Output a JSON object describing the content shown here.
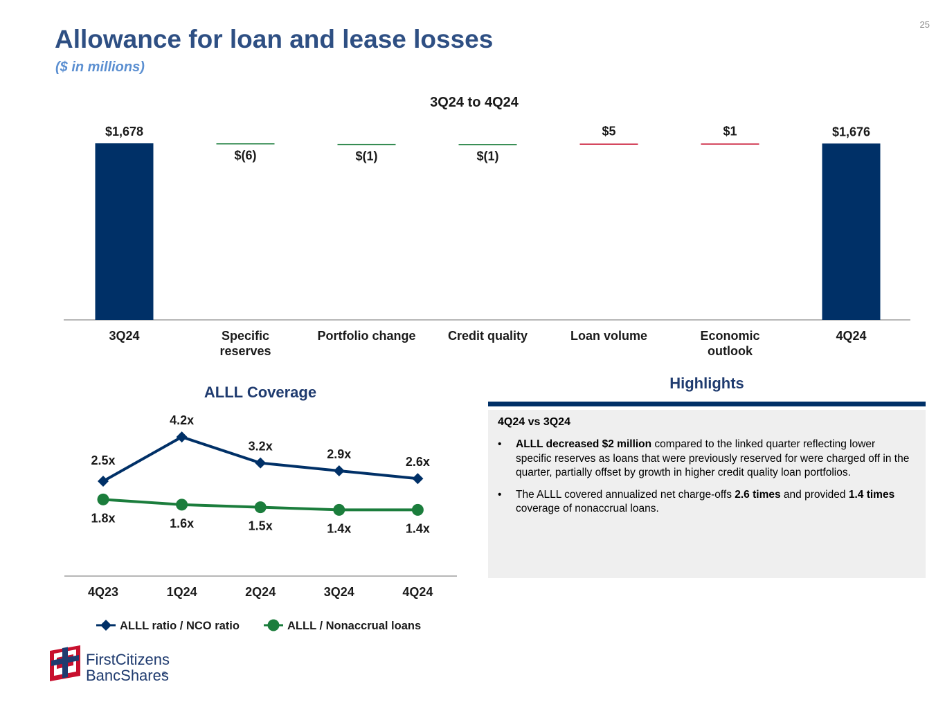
{
  "page_number": "25",
  "title": "Allowance for loan and lease losses",
  "subtitle": "($ in millions)",
  "colors": {
    "navy": "#003067",
    "green": "#1b7d3c",
    "red": "#c8102e",
    "title_blue": "#2e4f83",
    "subtitle_blue": "#5b8fd1",
    "panel_gray": "#efefef"
  },
  "chart_data": [
    {
      "type": "bar",
      "subtype": "waterfall",
      "title": "3Q24 to 4Q24",
      "categories": [
        "3Q24",
        "Specific reserves",
        "Portfolio change",
        "Credit quality",
        "Loan volume",
        "Economic outlook",
        "4Q24"
      ],
      "values": [
        1678,
        -6,
        -1,
        -1,
        5,
        1,
        1676
      ],
      "kinds": [
        "total",
        "delta",
        "delta",
        "delta",
        "delta",
        "delta",
        "total"
      ],
      "labels": [
        "$1,678",
        "$(6)",
        "$(1)",
        "$(1)",
        "$5",
        "$1",
        "$1,676"
      ],
      "xlabel": "",
      "ylabel": "",
      "grid": false
    },
    {
      "type": "line",
      "title": "ALLL Coverage",
      "categories": [
        "4Q23",
        "1Q24",
        "2Q24",
        "3Q24",
        "4Q24"
      ],
      "series": [
        {
          "name": "ALLL ratio / NCO ratio",
          "values": [
            2.5,
            4.2,
            3.2,
            2.9,
            2.6
          ],
          "labels": [
            "2.5x",
            "4.2x",
            "3.2x",
            "2.9x",
            "2.6x"
          ],
          "marker": "diamond",
          "color": "#003067"
        },
        {
          "name": "ALLL / Nonaccrual loans",
          "values": [
            1.8,
            1.6,
            1.5,
            1.4,
            1.4
          ],
          "labels": [
            "1.8x",
            "1.6x",
            "1.5x",
            "1.4x",
            "1.4x"
          ],
          "marker": "circle",
          "color": "#1b7d3c"
        }
      ],
      "legend": "bottom",
      "grid": false
    }
  ],
  "highlights": {
    "title": "Highlights",
    "heading": "4Q24 vs 3Q24",
    "items": [
      [
        {
          "text": "ALLL decreased $2 million",
          "bold": true
        },
        {
          "text": " compared to the linked quarter reflecting lower specific reserves as loans that were previously reserved for were charged off in the quarter, partially offset by growth in higher credit quality loan portfolios.",
          "bold": false
        }
      ],
      [
        {
          "text": "The ALLL covered annualized net charge-offs ",
          "bold": false
        },
        {
          "text": "2.6 times",
          "bold": true
        },
        {
          "text": " and provided ",
          "bold": false
        },
        {
          "text": "1.4 times",
          "bold": true
        },
        {
          "text": " coverage of nonaccrual loans.",
          "bold": false
        }
      ]
    ]
  },
  "logo": {
    "line1": "FirstCitizens",
    "line2": "BancShares",
    "mark": "®"
  }
}
